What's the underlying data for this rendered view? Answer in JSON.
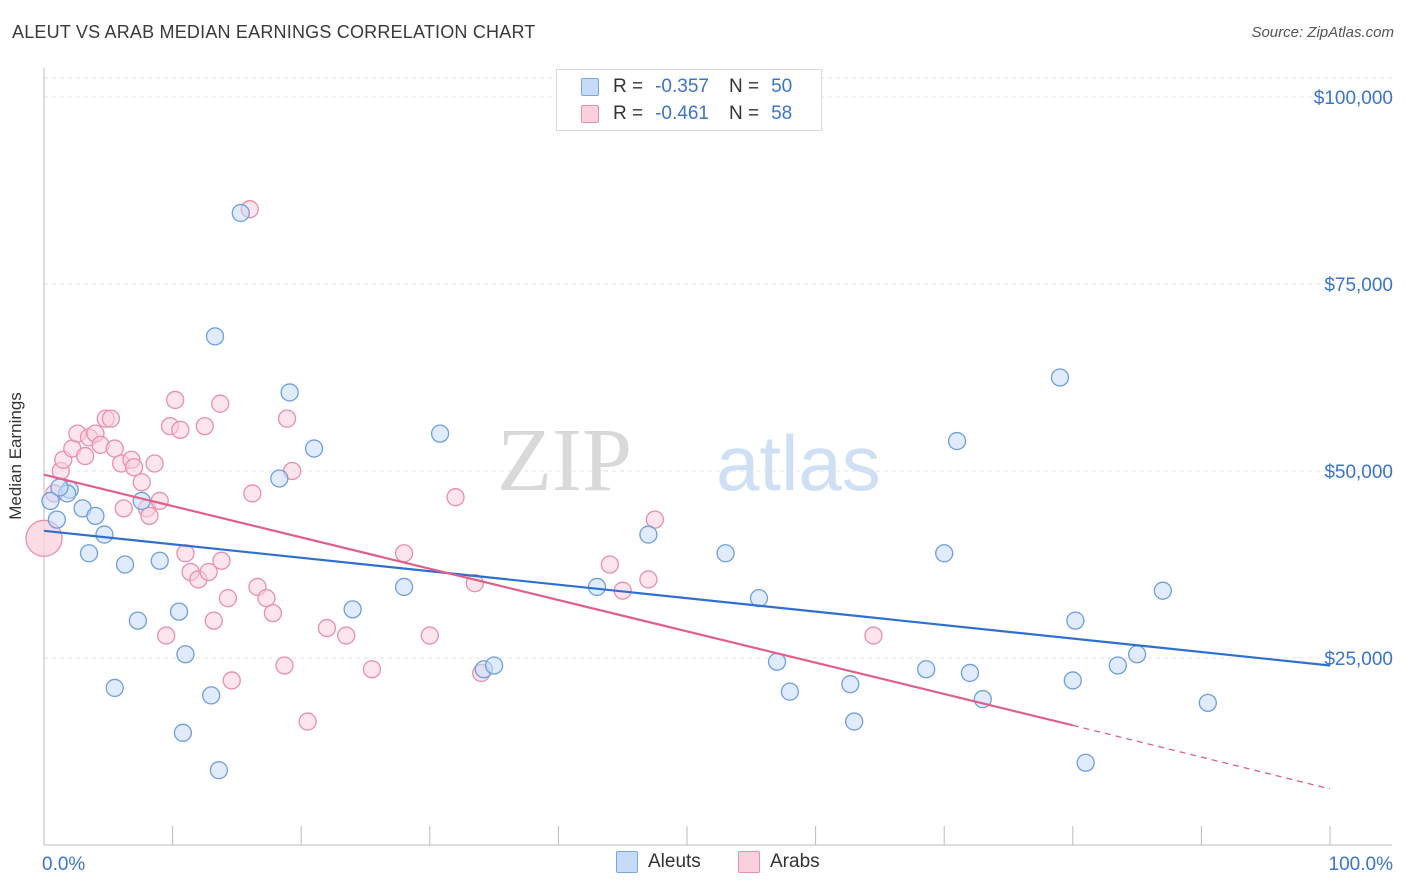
{
  "header": {
    "title": "ALEUT VS ARAB MEDIAN EARNINGS CORRELATION CHART",
    "source": "Source: ZipAtlas.com"
  },
  "watermark": {
    "zip": "ZIP",
    "atlas": "atlas"
  },
  "legend_top": {
    "aleut": {
      "r_label": "R =",
      "r_value": "-0.357",
      "n_label": "N =",
      "n_value": "50"
    },
    "arab": {
      "r_label": "R =",
      "r_value": "-0.461",
      "n_label": "N =",
      "n_value": "58"
    }
  },
  "legend_bottom": {
    "aleut": "Aleuts",
    "arab": "Arabs"
  },
  "colors": {
    "aleut_fill": "#c6dbf7",
    "aleut_stroke": "#6f9fdc",
    "aleut_line": "#2f6fd0",
    "arab_fill": "#fad0dc",
    "arab_stroke": "#e98fab",
    "arab_line": "#e0608a",
    "axis_label": "#3a74cf"
  },
  "chart_data": {
    "type": "scatter",
    "xlabel": "",
    "ylabel": "Median Earnings",
    "xlim": [
      0,
      100
    ],
    "ylim": [
      0,
      105000
    ],
    "x_tick_labels": [
      "0.0%",
      "100.0%"
    ],
    "y_ticks": [
      25000,
      50000,
      75000,
      100000
    ],
    "y_tick_labels": [
      "$25,000",
      "$50,000",
      "$75,000",
      "$100,000"
    ],
    "grid": true,
    "legend": "top-center",
    "series": [
      {
        "name": "Aleuts",
        "points": [
          [
            0.5,
            46000
          ],
          [
            1,
            43500
          ],
          [
            2,
            47500
          ],
          [
            1.8,
            47000
          ],
          [
            3,
            45000
          ],
          [
            3.5,
            39000
          ],
          [
            4,
            44000
          ],
          [
            4.7,
            41500
          ],
          [
            5.5,
            21000
          ],
          [
            6.3,
            37500
          ],
          [
            7.3,
            30000
          ],
          [
            7.6,
            46000
          ],
          [
            9,
            38000
          ],
          [
            10.5,
            31200
          ],
          [
            10.8,
            15000
          ],
          [
            11,
            25500
          ],
          [
            13,
            20000
          ],
          [
            13.3,
            68000
          ],
          [
            13.6,
            10000
          ],
          [
            15.3,
            84500
          ],
          [
            18.3,
            49000
          ],
          [
            19.1,
            60500
          ],
          [
            21,
            53000
          ],
          [
            24,
            31500
          ],
          [
            28,
            34500
          ],
          [
            30.8,
            55000
          ],
          [
            34.2,
            23500
          ],
          [
            35,
            24000
          ],
          [
            43,
            34500
          ],
          [
            47,
            41500
          ],
          [
            53,
            39000
          ],
          [
            55.6,
            33000
          ],
          [
            57,
            24500
          ],
          [
            58,
            20500
          ],
          [
            62.7,
            21500
          ],
          [
            63,
            16500
          ],
          [
            68.6,
            23500
          ],
          [
            70,
            39000
          ],
          [
            71,
            54000
          ],
          [
            72,
            23000
          ],
          [
            73,
            19500
          ],
          [
            79,
            62500
          ],
          [
            80,
            22000
          ],
          [
            80.2,
            30000
          ],
          [
            81,
            11000
          ],
          [
            83.5,
            24000
          ],
          [
            85,
            25500
          ],
          [
            87,
            34000
          ],
          [
            90.5,
            19000
          ],
          [
            1.2,
            47800
          ]
        ],
        "trend": {
          "x": [
            0,
            100
          ],
          "y": [
            42000,
            24000
          ]
        }
      },
      {
        "name": "Arabs",
        "points": [
          [
            0,
            41000
          ],
          [
            0.8,
            47000
          ],
          [
            1.3,
            50000
          ],
          [
            1.5,
            51500
          ],
          [
            2.2,
            53000
          ],
          [
            2.6,
            55000
          ],
          [
            3.2,
            52000
          ],
          [
            3.5,
            54500
          ],
          [
            4,
            55000
          ],
          [
            4.4,
            53500
          ],
          [
            4.8,
            57000
          ],
          [
            5.2,
            57000
          ],
          [
            5.5,
            53000
          ],
          [
            6,
            51000
          ],
          [
            6.2,
            45000
          ],
          [
            6.8,
            51500
          ],
          [
            7,
            50500
          ],
          [
            7.6,
            48500
          ],
          [
            8,
            45000
          ],
          [
            8.2,
            44000
          ],
          [
            8.6,
            51000
          ],
          [
            9,
            46000
          ],
          [
            9.5,
            28000
          ],
          [
            9.8,
            56000
          ],
          [
            10.2,
            59500
          ],
          [
            10.6,
            55500
          ],
          [
            11,
            39000
          ],
          [
            11.4,
            36500
          ],
          [
            12,
            35500
          ],
          [
            12.5,
            56000
          ],
          [
            12.8,
            36500
          ],
          [
            13.2,
            30000
          ],
          [
            13.7,
            59000
          ],
          [
            13.8,
            38000
          ],
          [
            14.3,
            33000
          ],
          [
            14.6,
            22000
          ],
          [
            16,
            85000
          ],
          [
            16.2,
            47000
          ],
          [
            16.6,
            34500
          ],
          [
            17.3,
            33000
          ],
          [
            17.8,
            31000
          ],
          [
            18.7,
            24000
          ],
          [
            18.9,
            57000
          ],
          [
            19.3,
            50000
          ],
          [
            20.5,
            16500
          ],
          [
            22,
            29000
          ],
          [
            23.5,
            28000
          ],
          [
            25.5,
            23500
          ],
          [
            28,
            39000
          ],
          [
            30,
            28000
          ],
          [
            32,
            46500
          ],
          [
            33.5,
            35000
          ],
          [
            34,
            23000
          ],
          [
            44,
            37500
          ],
          [
            45,
            34000
          ],
          [
            47,
            35500
          ],
          [
            47.5,
            43500
          ],
          [
            64.5,
            28000
          ]
        ],
        "trend": {
          "x": [
            0,
            80
          ],
          "y": [
            49500,
            16000
          ]
        },
        "trend_extension": {
          "x": [
            80,
            100
          ],
          "y": [
            16000,
            7500
          ]
        }
      }
    ]
  }
}
